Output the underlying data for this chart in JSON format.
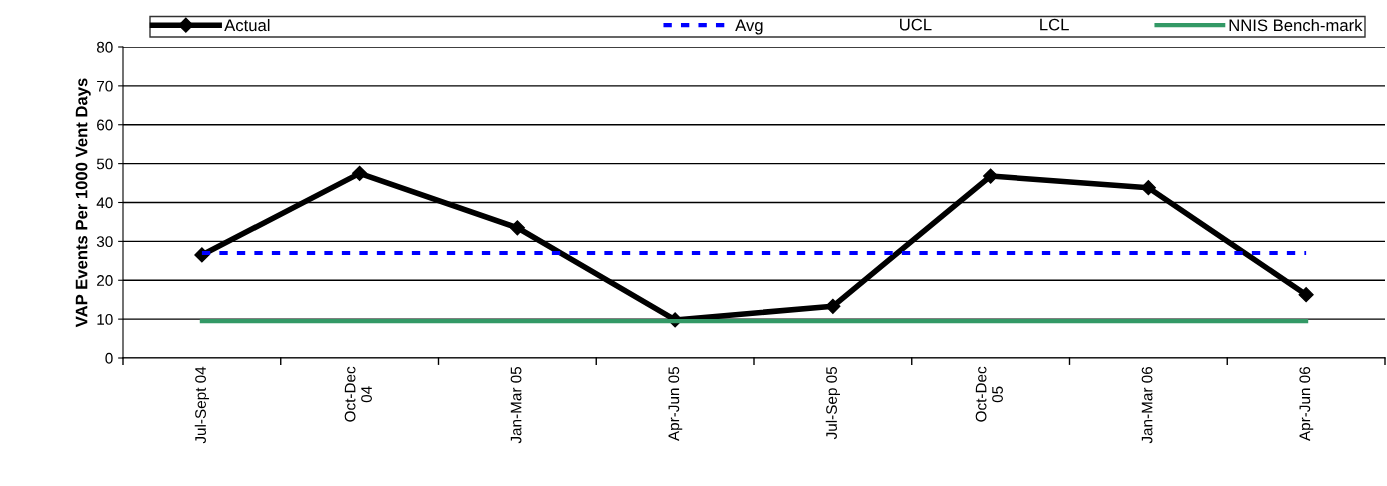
{
  "chart_data": {
    "type": "line",
    "ylabel": "VAP Events Per 1000 Vent Days",
    "categories": [
      "Jul-Sept 04",
      "Oct-Dec\n04",
      "Jan-Mar 05",
      "Apr-Jun 05",
      "Jul-Sep 05",
      "Oct-Dec\n05",
      "Jan-Mar 06",
      "Apr-Jun 06"
    ],
    "series": [
      {
        "name": "Actual",
        "color": "#000000",
        "marker": "diamond",
        "line_style": "solid",
        "values": [
          26.5,
          47.5,
          33.5,
          9.8,
          13.3,
          46.8,
          43.8,
          16.3
        ]
      },
      {
        "name": "Avg",
        "color": "#0000ff",
        "marker": "none",
        "line_style": "dashed",
        "values": [
          27,
          27,
          27,
          27,
          27,
          27,
          27,
          27
        ]
      },
      {
        "name": "NNIS Bench-mark",
        "color": "#339966",
        "marker": "none",
        "line_style": "solid",
        "values": [
          9.5,
          9.5,
          9.5,
          9.5,
          9.5,
          9.5,
          9.5,
          9.5
        ]
      }
    ],
    "annotations": [
      "UCL",
      "LCL"
    ],
    "ylim": [
      0,
      80
    ],
    "yticks": [
      0,
      10,
      20,
      30,
      40,
      50,
      60,
      70,
      80
    ],
    "grid": "y",
    "legend": "top"
  }
}
